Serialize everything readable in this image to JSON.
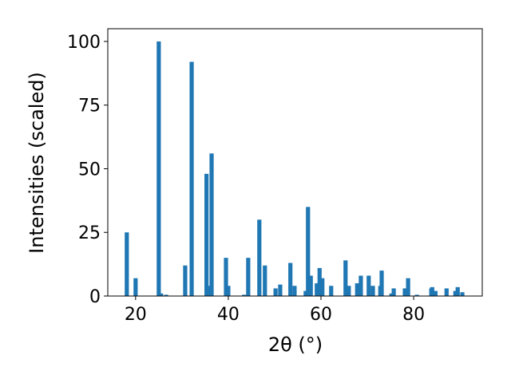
{
  "chart_data": {
    "type": "bar",
    "xlabel": "2θ (°)",
    "ylabel": "Intensities (scaled)",
    "x": [
      18.1,
      20.0,
      25.0,
      25.5,
      26.6,
      30.7,
      32.1,
      35.3,
      36.0,
      36.4,
      39.5,
      40.0,
      43.4,
      44.3,
      46.7,
      47.9,
      50.2,
      51.2,
      53.4,
      54.3,
      56.7,
      57.2,
      57.8,
      59.1,
      59.7,
      60.3,
      62.2,
      65.3,
      66.0,
      67.8,
      68.3,
      68.6,
      70.3,
      71.2,
      72.8,
      73.1,
      75.2,
      75.7,
      78.1,
      78.8,
      80.7,
      83.8,
      84.0,
      84.7,
      87.1,
      89.0,
      89.5,
      90.5
    ],
    "values": [
      25,
      7,
      100,
      1,
      0.5,
      12,
      92,
      48,
      4,
      56,
      15,
      4,
      0.5,
      15,
      30,
      12,
      3,
      4.5,
      13,
      4,
      2,
      35,
      8,
      5,
      11,
      7,
      4,
      14,
      4,
      5,
      4,
      8,
      8,
      4,
      4,
      10,
      1,
      3,
      3,
      7,
      0.5,
      3,
      3.5,
      2,
      3,
      2,
      3.5,
      1.5
    ],
    "color": "#1f77b4",
    "xlim": [
      14,
      94.8
    ],
    "ylim": [
      0,
      105
    ],
    "xticks": [
      20,
      40,
      60,
      80
    ],
    "yticks": [
      0,
      25,
      50,
      75,
      100
    ]
  }
}
